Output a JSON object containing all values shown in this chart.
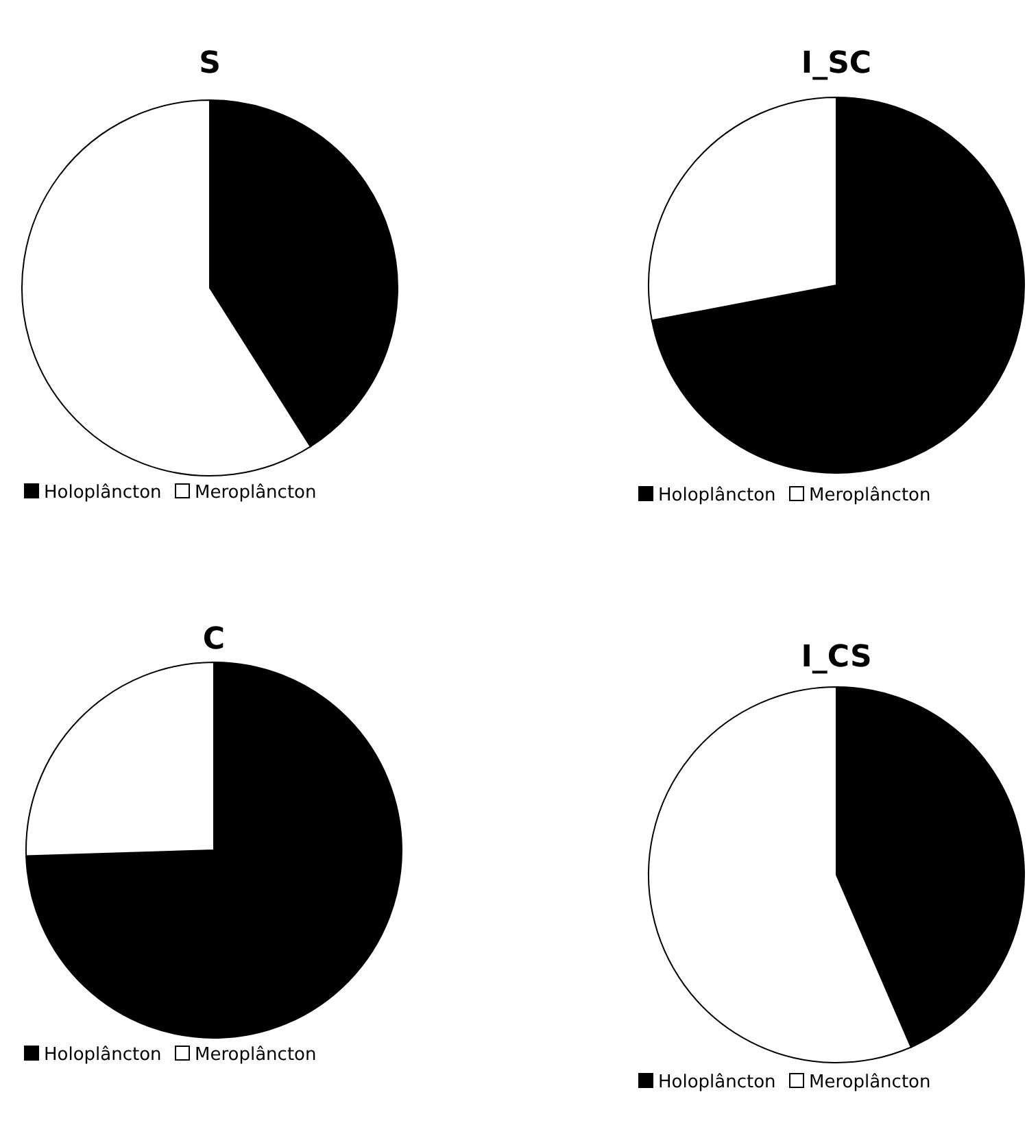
{
  "chart_data": [
    {
      "type": "pie",
      "title": "S",
      "categories": [
        "Holoplâncton",
        "Meroplâncton"
      ],
      "values": [
        41,
        59
      ],
      "colors": [
        "#000000",
        "#ffffff"
      ],
      "legend": "bottom"
    },
    {
      "type": "pie",
      "title": "I_SC",
      "categories": [
        "Holoplâncton",
        "Meroplâncton"
      ],
      "values": [
        72,
        28
      ],
      "colors": [
        "#000000",
        "#ffffff"
      ],
      "legend": "bottom"
    },
    {
      "type": "pie",
      "title": "C",
      "categories": [
        "Holoplâncton",
        "Meroplâncton"
      ],
      "values": [
        74.5,
        25.5
      ],
      "colors": [
        "#000000",
        "#ffffff"
      ],
      "legend": "bottom"
    },
    {
      "type": "pie",
      "title": "I_CS",
      "categories": [
        "Holoplâncton",
        "Meroplâncton"
      ],
      "values": [
        43.5,
        56.5
      ],
      "colors": [
        "#000000",
        "#ffffff"
      ],
      "legend": "bottom"
    }
  ]
}
